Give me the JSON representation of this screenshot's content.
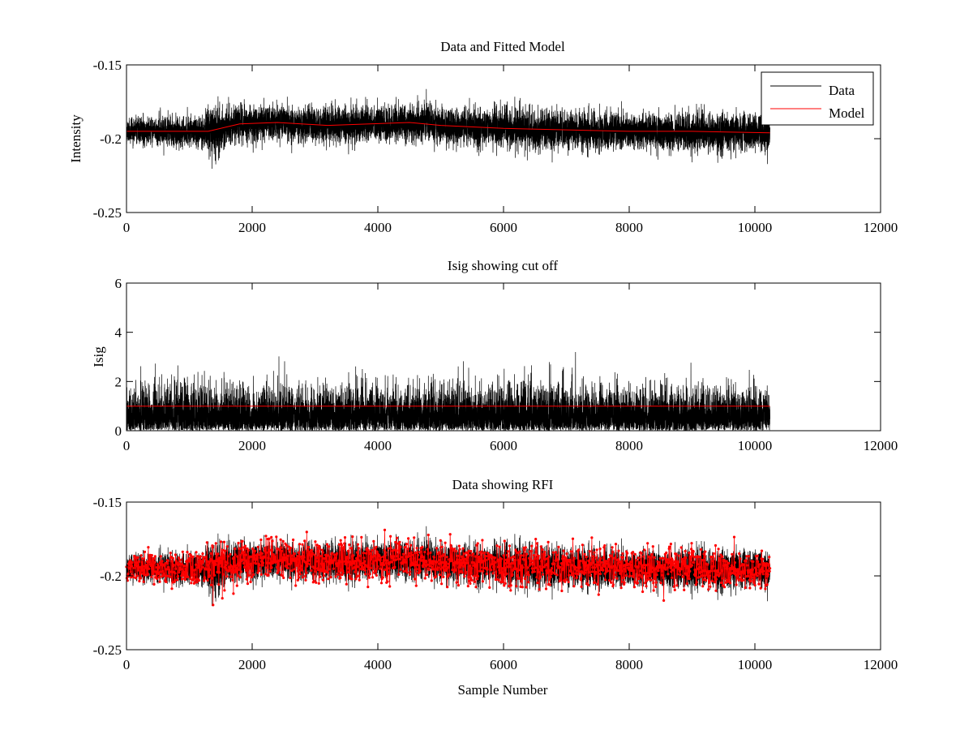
{
  "figure": {
    "background": "#ffffff",
    "axes_color": "#000000"
  },
  "chart_data": [
    {
      "type": "line",
      "title": "Data and Fitted Model",
      "xlabel": "",
      "ylabel": "Intensity",
      "xlim": [
        0,
        12000
      ],
      "ylim": [
        -0.25,
        -0.15
      ],
      "y_reversed": true,
      "xticks": [
        0,
        2000,
        4000,
        6000,
        8000,
        10000,
        12000
      ],
      "xtick_labels": [
        "0",
        "2000",
        "4000",
        "6000",
        "8000",
        "10000",
        "12000"
      ],
      "yticks": [
        -0.15,
        -0.2,
        -0.25
      ],
      "ytick_labels": [
        "-0.15",
        "-0.2",
        "-0.25"
      ],
      "grid": false,
      "legend": {
        "location": "top-right",
        "entries": [
          "Data",
          "Model"
        ]
      },
      "series": [
        {
          "name": "Data",
          "color": "#000000",
          "kind": "noisy",
          "x_range": [
            0,
            10240
          ],
          "n": 10240,
          "seed": 11,
          "mean_x": [
            0,
            1300,
            1800,
            2400,
            3200,
            4500,
            5000,
            6000,
            7000,
            8000,
            9000,
            10240
          ],
          "mean_y": [
            -0.195,
            -0.195,
            -0.19,
            -0.189,
            -0.191,
            -0.189,
            -0.191,
            -0.193,
            -0.194,
            -0.195,
            -0.195,
            -0.196
          ],
          "envelope_x": [
            0,
            1200,
            1400,
            1700,
            3000,
            4500,
            5500,
            6500,
            8000,
            9500,
            10240
          ],
          "envelope_y": [
            0.004,
            0.0055,
            0.009,
            0.006,
            0.0062,
            0.0062,
            0.0062,
            0.0067,
            0.006,
            0.0066,
            0.0055
          ],
          "clip": [
            -0.234,
            -0.164
          ]
        },
        {
          "name": "Model",
          "color": "#ff0000",
          "kind": "line",
          "x": [
            0,
            1300,
            1800,
            2400,
            3200,
            4500,
            5000,
            6000,
            7000,
            8000,
            9000,
            10240
          ],
          "y": [
            -0.195,
            -0.195,
            -0.19,
            -0.189,
            -0.191,
            -0.189,
            -0.191,
            -0.193,
            -0.194,
            -0.195,
            -0.195,
            -0.196
          ]
        }
      ]
    },
    {
      "type": "line",
      "title": "Isig showing cut off",
      "xlabel": "",
      "ylabel": "Isig",
      "xlim": [
        0,
        12000
      ],
      "ylim": [
        0,
        6
      ],
      "y_reversed": false,
      "xticks": [
        0,
        2000,
        4000,
        6000,
        8000,
        10000,
        12000
      ],
      "xtick_labels": [
        "0",
        "2000",
        "4000",
        "6000",
        "8000",
        "10000",
        "12000"
      ],
      "yticks": [
        0,
        2,
        4,
        6
      ],
      "ytick_labels": [
        "0",
        "2",
        "4",
        "6"
      ],
      "grid": false,
      "series": [
        {
          "color": "#000000",
          "kind": "abs_noise",
          "x_range": [
            0,
            10240
          ],
          "n": 10240,
          "seed": 23,
          "scale": 0.8,
          "clip": [
            0,
            4.4
          ]
        },
        {
          "color": "#ff0000",
          "kind": "line",
          "x": [
            0,
            10240
          ],
          "y": [
            1,
            1
          ]
        }
      ]
    },
    {
      "type": "line",
      "title": "Data showing RFI",
      "xlabel": "Sample Number",
      "ylabel": "",
      "xlim": [
        0,
        12000
      ],
      "ylim": [
        -0.25,
        -0.15
      ],
      "y_reversed": true,
      "xticks": [
        0,
        2000,
        4000,
        6000,
        8000,
        10000,
        12000
      ],
      "xtick_labels": [
        "0",
        "2000",
        "4000",
        "6000",
        "8000",
        "10000",
        "12000"
      ],
      "yticks": [
        -0.15,
        -0.2,
        -0.25
      ],
      "ytick_labels": [
        "-0.15",
        "-0.2",
        "-0.25"
      ],
      "grid": false,
      "series": [
        {
          "color": "#000000",
          "kind": "noisy",
          "x_range": [
            0,
            10240
          ],
          "n": 10240,
          "seed": 11,
          "mean_x": [
            0,
            1300,
            1800,
            2400,
            3200,
            4500,
            5000,
            6000,
            7000,
            8000,
            9000,
            10240
          ],
          "mean_y": [
            -0.195,
            -0.195,
            -0.19,
            -0.189,
            -0.191,
            -0.189,
            -0.191,
            -0.193,
            -0.194,
            -0.195,
            -0.195,
            -0.196
          ],
          "envelope_x": [
            0,
            1200,
            1400,
            1700,
            3000,
            4500,
            5500,
            6500,
            8000,
            9500,
            10240
          ],
          "envelope_y": [
            0.004,
            0.0055,
            0.009,
            0.006,
            0.0062,
            0.0062,
            0.0062,
            0.0067,
            0.006,
            0.0066,
            0.0055
          ],
          "clip": [
            -0.234,
            -0.164
          ]
        },
        {
          "color": "#ff0000",
          "kind": "noisy_markers",
          "marker": "dot",
          "x_range": [
            0,
            10240
          ],
          "n": 1800,
          "seed": 57,
          "mean_x": [
            0,
            1300,
            1800,
            2400,
            3200,
            4500,
            5000,
            6000,
            7000,
            8000,
            9000,
            10240
          ],
          "mean_y": [
            -0.195,
            -0.195,
            -0.19,
            -0.189,
            -0.191,
            -0.189,
            -0.191,
            -0.193,
            -0.194,
            -0.195,
            -0.195,
            -0.196
          ],
          "envelope_x": [
            0,
            1200,
            1400,
            1700,
            3000,
            4500,
            5500,
            6500,
            8000,
            9500,
            10240
          ],
          "envelope_y": [
            0.0048,
            0.0062,
            0.0095,
            0.0068,
            0.007,
            0.007,
            0.007,
            0.0075,
            0.0068,
            0.0074,
            0.006
          ],
          "clip": [
            -0.234,
            -0.164
          ]
        }
      ]
    }
  ]
}
